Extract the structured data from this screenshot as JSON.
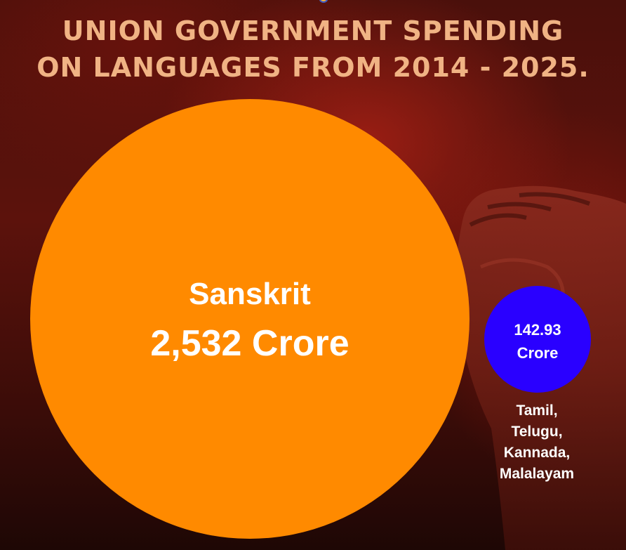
{
  "title": {
    "line1": "UNION GOVERNMENT SPENDING",
    "line2": "ON LANGUAGES FROM 2014 - 2025."
  },
  "chart_data": {
    "type": "bubble",
    "unit": "Crore",
    "items": [
      {
        "name": "Sanskrit",
        "value": 2532,
        "value_label": "2,532 Crore",
        "color": "#ff8a00"
      },
      {
        "name": "",
        "value": 142.93,
        "value_label_line1": "142.93",
        "value_label_line2": "Crore",
        "color": "#2a00ff",
        "languages": [
          "Tamil,",
          "Telugu,",
          "Kannada,",
          "Malalayam"
        ]
      }
    ]
  },
  "colors": {
    "title": "#f0b384",
    "background": "#5c120c"
  }
}
